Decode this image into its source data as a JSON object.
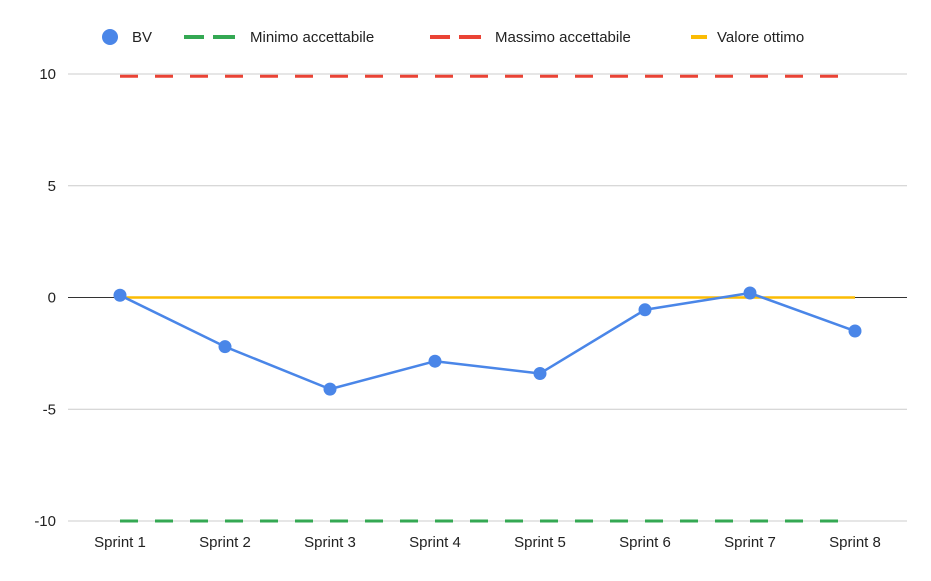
{
  "chart_data": {
    "type": "line",
    "categories": [
      "Sprint 1",
      "Sprint 2",
      "Sprint 3",
      "Sprint 4",
      "Sprint 5",
      "Sprint 6",
      "Sprint 7",
      "Sprint 8"
    ],
    "series": [
      {
        "name": "BV",
        "values": [
          0.1,
          -2.2,
          -4.1,
          -2.85,
          -3.4,
          -0.55,
          0.2,
          -1.5
        ],
        "color": "#4a86e8",
        "style": "line-with-markers"
      },
      {
        "name": "Minimo accettabile",
        "values": [
          -10,
          -10,
          -10,
          -10,
          -10,
          -10,
          -10,
          -10
        ],
        "color": "#34a853",
        "style": "dashed"
      },
      {
        "name": "Massimo accettabile",
        "values": [
          9.9,
          9.9,
          9.9,
          9.9,
          9.9,
          9.9,
          9.9,
          9.9
        ],
        "color": "#ea4335",
        "style": "dashed"
      },
      {
        "name": "Valore ottimo",
        "values": [
          0,
          0,
          0,
          0,
          0,
          0,
          0,
          0
        ],
        "color": "#fbbc04",
        "style": "solid"
      }
    ],
    "yticks": [
      "10",
      "5",
      "0",
      "-5",
      "-10"
    ],
    "ylim": [
      -10,
      10
    ],
    "grid": true,
    "legend_position": "top"
  }
}
